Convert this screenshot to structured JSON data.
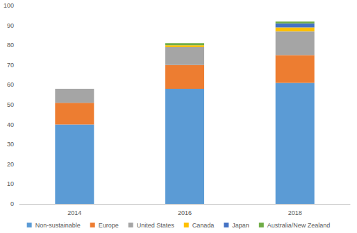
{
  "chart_data": {
    "type": "bar",
    "stacked": true,
    "grid": false,
    "legend": "bottom",
    "categories": [
      "2014",
      "2016",
      "2018"
    ],
    "series": [
      {
        "name": "Non-sustainable",
        "color": "#5b9bd5",
        "values": [
          40,
          58,
          61
        ]
      },
      {
        "name": "Europe",
        "color": "#ed7d31",
        "values": [
          11,
          12,
          14
        ]
      },
      {
        "name": "United States",
        "color": "#a5a5a5",
        "values": [
          7,
          9,
          12
        ]
      },
      {
        "name": "Canada",
        "color": "#ffc000",
        "values": [
          0,
          1,
          2
        ]
      },
      {
        "name": "Japan",
        "color": "#4472c4",
        "values": [
          0,
          0,
          2
        ]
      },
      {
        "name": "Australia/New Zealand",
        "color": "#70ad47",
        "values": [
          0,
          1,
          1
        ]
      }
    ],
    "ylim": [
      0,
      100
    ],
    "yticks": [
      0,
      10,
      20,
      30,
      40,
      50,
      60,
      70,
      80,
      90,
      100
    ]
  }
}
